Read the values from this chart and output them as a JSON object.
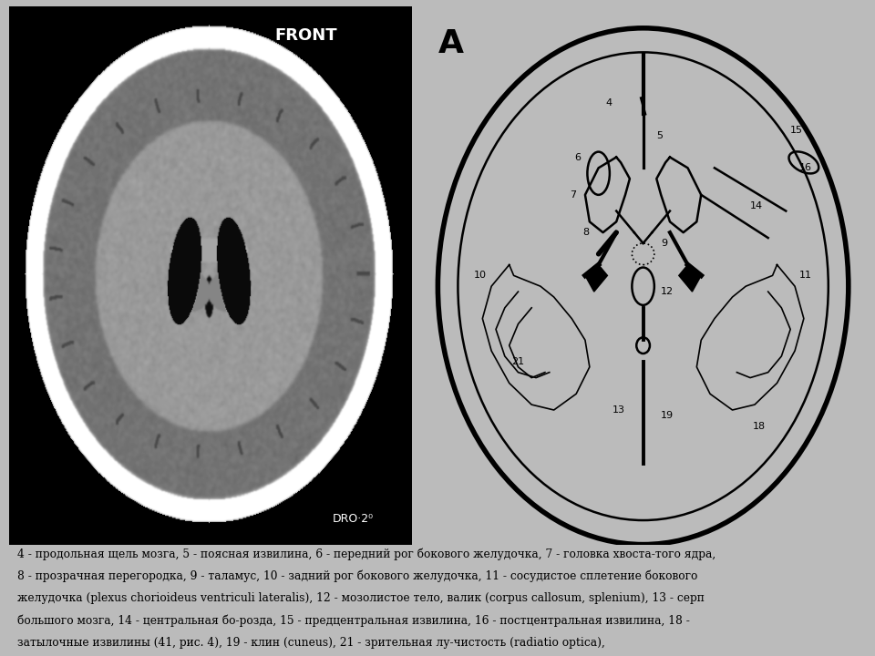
{
  "fig_bg": "#bbbbbb",
  "left_bg": "#000000",
  "right_bg": "#ffffff",
  "caption_text_line1": "4 - продольная щель мозга, 5 - поясная извилина, 6 - передний рог бокового желудочка, 7 - головка хвоста-того ядра,",
  "caption_text_line2": "8 - прозрачная перегородка, 9 - таламус, 10 - задний рог бокового желудочка, 11 - сосудистое сплетение бокового",
  "caption_text_line3": "желудочка (plexus chorioideus ventriculi lateralis), 12 - мозолистое тело, валик (corpus callosum, splenium), 13 - серп",
  "caption_text_line4": "большого мозга, 14 - центральная бо-розда, 15 - предцентральная извилина, 16 - постцентральная извилина, 18 -",
  "caption_text_line5": "затылочные извилины (41, рис. 4), 19 - клин (cuneus), 21 - зрительная лу-чистость (radiatio optica),"
}
